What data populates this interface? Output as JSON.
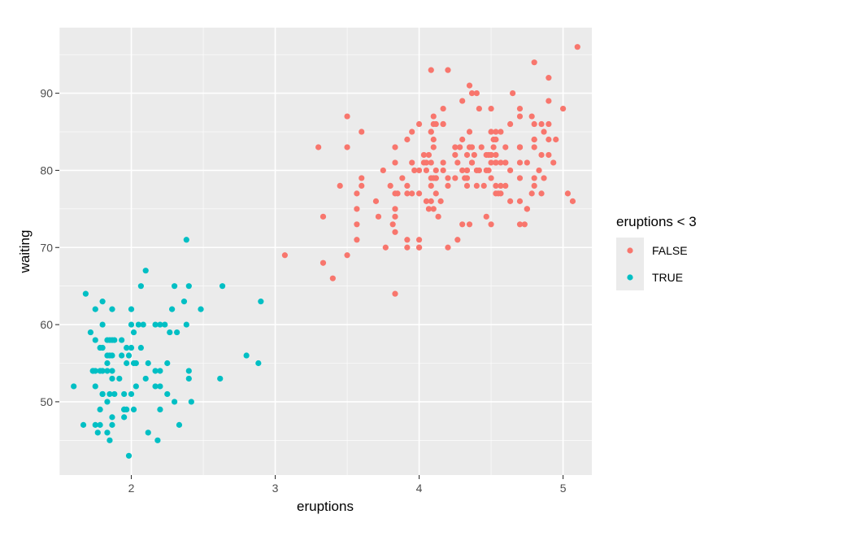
{
  "chart_data": {
    "type": "scatter",
    "xlabel": "eruptions",
    "ylabel": "waiting",
    "xlim": [
      1.5,
      5.2
    ],
    "ylim": [
      40.5,
      98.5
    ],
    "x_ticks": [
      2,
      3,
      4,
      5
    ],
    "x_tick_labels": [
      "2",
      "3",
      "4",
      "5"
    ],
    "y_ticks": [
      50,
      60,
      70,
      80,
      90
    ],
    "y_tick_labels": [
      "50",
      "60",
      "70",
      "80",
      "90"
    ],
    "grid": true,
    "legend": {
      "title": "eruptions < 3",
      "position": "right",
      "entries": [
        {
          "label": "FALSE",
          "color": "#F8766D"
        },
        {
          "label": "TRUE",
          "color": "#00BFC4"
        }
      ]
    },
    "series": [
      {
        "name": "FALSE",
        "color": "#F8766D",
        "points": [
          [
            3.6,
            79
          ],
          [
            3.333,
            74
          ],
          [
            4.533,
            85
          ],
          [
            4.7,
            88
          ],
          [
            3.6,
            85
          ],
          [
            4.35,
            85
          ],
          [
            3.917,
            84
          ],
          [
            4.2,
            78
          ],
          [
            4.7,
            83
          ],
          [
            4.8,
            84
          ],
          [
            4.25,
            83
          ],
          [
            3.45,
            78
          ],
          [
            4.467,
            74
          ],
          [
            4.1,
            83
          ],
          [
            4.6,
            83
          ],
          [
            3.833,
            64
          ],
          [
            3.5,
            87
          ],
          [
            4.533,
            84
          ],
          [
            4.117,
            79
          ],
          [
            4.083,
            78
          ],
          [
            3.917,
            78
          ],
          [
            4.567,
            77
          ],
          [
            4.4,
            78
          ],
          [
            3.85,
            77
          ],
          [
            3.6,
            78
          ],
          [
            4.333,
            79
          ],
          [
            4.5,
            73
          ],
          [
            4.417,
            80
          ],
          [
            4.7,
            83
          ],
          [
            4.8,
            94
          ],
          [
            4.1,
            87
          ],
          [
            3.4,
            66
          ],
          [
            4.3,
            73
          ],
          [
            4.7,
            76
          ],
          [
            4.05,
            76
          ],
          [
            4.633,
            76
          ],
          [
            3.3,
            83
          ],
          [
            4.35,
            83
          ],
          [
            4.55,
            77
          ],
          [
            3.917,
            77
          ],
          [
            4.8,
            84
          ],
          [
            4.05,
            80
          ],
          [
            4.333,
            78
          ],
          [
            4.167,
            80
          ],
          [
            4.033,
            82
          ],
          [
            4.1,
            75
          ],
          [
            4.25,
            79
          ],
          [
            4.3,
            80
          ],
          [
            4.7,
            79
          ],
          [
            4.467,
            80
          ],
          [
            4.933,
            81
          ],
          [
            4.283,
            83
          ],
          [
            4.9,
            92
          ],
          [
            3.833,
            75
          ],
          [
            4.5,
            85
          ],
          [
            4.167,
            86
          ],
          [
            4.133,
            74
          ],
          [
            4.267,
            81
          ],
          [
            4.7,
            83
          ],
          [
            4.25,
            82
          ],
          [
            4.8,
            86
          ],
          [
            4.2,
            79
          ],
          [
            4.083,
            85
          ],
          [
            4.333,
            82
          ],
          [
            4.8,
            79
          ],
          [
            4.1,
            84
          ],
          [
            4.0,
            80
          ],
          [
            4.95,
            84
          ],
          [
            4.833,
            80
          ],
          [
            4.167,
            88
          ],
          [
            4.533,
            78
          ],
          [
            4.3,
            89
          ],
          [
            3.833,
            74
          ],
          [
            4.2,
            70
          ],
          [
            4.85,
            77
          ],
          [
            4.783,
            87
          ],
          [
            3.717,
            74
          ],
          [
            4.367,
            81
          ],
          [
            3.567,
            73
          ],
          [
            4.533,
            81
          ],
          [
            4.7,
            87
          ],
          [
            4.8,
            78
          ],
          [
            3.833,
            81
          ],
          [
            4.9,
            89
          ],
          [
            4.333,
            80
          ],
          [
            4.733,
            73
          ],
          [
            4.117,
            77
          ],
          [
            4.533,
            81
          ],
          [
            4.567,
            85
          ],
          [
            5.1,
            96
          ],
          [
            4.267,
            71
          ],
          [
            4.75,
            75
          ],
          [
            4.5,
            82
          ],
          [
            4.1,
            86
          ],
          [
            5.033,
            77
          ],
          [
            4.35,
            91
          ],
          [
            4.117,
            86
          ],
          [
            4.383,
            82
          ],
          [
            3.95,
            85
          ],
          [
            4.0,
            70
          ],
          [
            4.0,
            71
          ],
          [
            4.783,
            77
          ],
          [
            4.083,
            81
          ],
          [
            4.75,
            75
          ],
          [
            4.567,
            78
          ],
          [
            4.533,
            82
          ],
          [
            4.433,
            83
          ],
          [
            4.5,
            79
          ],
          [
            3.817,
            73
          ],
          [
            4.367,
            90
          ],
          [
            4.7,
            73
          ],
          [
            4.317,
            79
          ],
          [
            4.033,
            81
          ],
          [
            4.4,
            90
          ],
          [
            3.767,
            70
          ],
          [
            4.167,
            81
          ],
          [
            4.45,
            78
          ],
          [
            4.7,
            81
          ],
          [
            4.9,
            82
          ],
          [
            4.6,
            81
          ],
          [
            4.083,
            79
          ],
          [
            3.917,
            71
          ],
          [
            4.483,
            82
          ],
          [
            4.367,
            83
          ],
          [
            4.6,
            78
          ],
          [
            4.067,
            75
          ],
          [
            4.567,
            81
          ],
          [
            4.867,
            79
          ],
          [
            4.483,
            80
          ],
          [
            4.75,
            81
          ],
          [
            4.2,
            93
          ],
          [
            4.067,
            82
          ],
          [
            4.0,
            77
          ],
          [
            4.417,
            88
          ],
          [
            4.117,
            80
          ],
          [
            4.333,
            80
          ],
          [
            4.517,
            84
          ],
          [
            4.5,
            88
          ],
          [
            3.917,
            70
          ],
          [
            4.65,
            90
          ],
          [
            3.567,
            75
          ],
          [
            3.883,
            79
          ],
          [
            4.6,
            81
          ],
          [
            4.633,
            80
          ],
          [
            4.85,
            86
          ],
          [
            3.5,
            83
          ],
          [
            3.333,
            68
          ],
          [
            4.467,
            82
          ],
          [
            4.4,
            80
          ],
          [
            3.967,
            80
          ],
          [
            4.117,
            79
          ],
          [
            3.95,
            77
          ],
          [
            3.5,
            69
          ],
          [
            3.067,
            69
          ],
          [
            4.533,
            81
          ],
          [
            3.567,
            71
          ],
          [
            4.0,
            70
          ],
          [
            4.5,
            81
          ],
          [
            4.083,
            93
          ],
          [
            3.8,
            78
          ],
          [
            3.7,
            76
          ],
          [
            4.867,
            85
          ],
          [
            4.083,
            76
          ],
          [
            3.567,
            77
          ],
          [
            4.367,
            81
          ],
          [
            4.3,
            84
          ],
          [
            3.95,
            81
          ],
          [
            4.85,
            82
          ],
          [
            4.1,
            79
          ],
          [
            4.8,
            83
          ],
          [
            4.533,
            77
          ],
          [
            4.15,
            76
          ],
          [
            3.833,
            83
          ],
          [
            4.9,
            86
          ],
          [
            3.75,
            80
          ],
          [
            5.0,
            88
          ],
          [
            4.167,
            86
          ],
          [
            5.067,
            76
          ],
          [
            4.083,
            85
          ],
          [
            4.633,
            86
          ],
          [
            4.5,
            82
          ],
          [
            4.9,
            84
          ],
          [
            4.517,
            83
          ],
          [
            4.35,
            73
          ],
          [
            3.833,
            77
          ],
          [
            4.0,
            86
          ],
          [
            4.05,
            81
          ],
          [
            3.833,
            72
          ]
        ]
      },
      {
        "name": "TRUE",
        "color": "#00BFC4",
        "points": [
          [
            1.8,
            54
          ],
          [
            2.283,
            62
          ],
          [
            1.95,
            51
          ],
          [
            1.833,
            54
          ],
          [
            1.6,
            52
          ],
          [
            1.8,
            51
          ],
          [
            1.75,
            47
          ],
          [
            1.867,
            48
          ],
          [
            1.75,
            58
          ],
          [
            2.167,
            52
          ],
          [
            2.383,
            71
          ],
          [
            1.983,
            43
          ],
          [
            1.967,
            49
          ],
          [
            2.017,
            49
          ],
          [
            1.867,
            58
          ],
          [
            1.833,
            55
          ],
          [
            1.867,
            47
          ],
          [
            2.167,
            54
          ],
          [
            1.717,
            59
          ],
          [
            1.967,
            57
          ],
          [
            2.0,
            60
          ],
          [
            1.867,
            53
          ],
          [
            1.8,
            63
          ],
          [
            1.683,
            64
          ],
          [
            1.783,
            57
          ],
          [
            2.317,
            59
          ],
          [
            1.95,
            49
          ],
          [
            2.05,
            60
          ],
          [
            2.033,
            55
          ],
          [
            1.917,
            53
          ],
          [
            1.733,
            54
          ],
          [
            2.3,
            65
          ],
          [
            1.833,
            46
          ],
          [
            2.017,
            55
          ],
          [
            1.867,
            62
          ],
          [
            1.783,
            47
          ],
          [
            1.833,
            50
          ],
          [
            1.967,
            55
          ],
          [
            2.1,
            53
          ],
          [
            1.883,
            51
          ],
          [
            2.2,
            60
          ],
          [
            1.75,
            62
          ],
          [
            2.383,
            60
          ],
          [
            1.8,
            60
          ],
          [
            2.083,
            60
          ],
          [
            1.85,
            56
          ],
          [
            1.8,
            57
          ],
          [
            1.75,
            54
          ],
          [
            1.667,
            47
          ],
          [
            1.8,
            51
          ],
          [
            2.117,
            55
          ],
          [
            2.25,
            55
          ],
          [
            2.483,
            62
          ],
          [
            1.783,
            49
          ],
          [
            1.867,
            56
          ],
          [
            1.75,
            52
          ],
          [
            2.067,
            65
          ],
          [
            1.833,
            56
          ],
          [
            1.933,
            58
          ],
          [
            2.167,
            60
          ],
          [
            2.2,
            52
          ],
          [
            1.867,
            54
          ],
          [
            2.1,
            67
          ],
          [
            1.95,
            48
          ],
          [
            2.367,
            63
          ],
          [
            2.067,
            57
          ],
          [
            2.333,
            47
          ],
          [
            1.95,
            49
          ],
          [
            2.017,
            59
          ],
          [
            2.4,
            65
          ],
          [
            1.883,
            58
          ],
          [
            2.617,
            53
          ],
          [
            1.733,
            54
          ],
          [
            1.767,
            46
          ],
          [
            2.0,
            62
          ],
          [
            2.117,
            46
          ],
          [
            2.8,
            56
          ],
          [
            2.9,
            63
          ],
          [
            2.0,
            57
          ],
          [
            2.25,
            51
          ],
          [
            2.233,
            60
          ],
          [
            1.85,
            58
          ],
          [
            1.783,
            54
          ],
          [
            2.633,
            65
          ],
          [
            1.933,
            56
          ],
          [
            2.3,
            50
          ],
          [
            2.183,
            45
          ],
          [
            1.983,
            56
          ],
          [
            1.85,
            45
          ],
          [
            2.417,
            50
          ],
          [
            2.033,
            52
          ],
          [
            1.833,
            58
          ],
          [
            2.883,
            55
          ],
          [
            2.2,
            54
          ],
          [
            1.85,
            51
          ],
          [
            2.4,
            53
          ],
          [
            2.267,
            59
          ],
          [
            2.4,
            54
          ],
          [
            2.2,
            49
          ],
          [
            2.0,
            51
          ]
        ]
      }
    ]
  }
}
